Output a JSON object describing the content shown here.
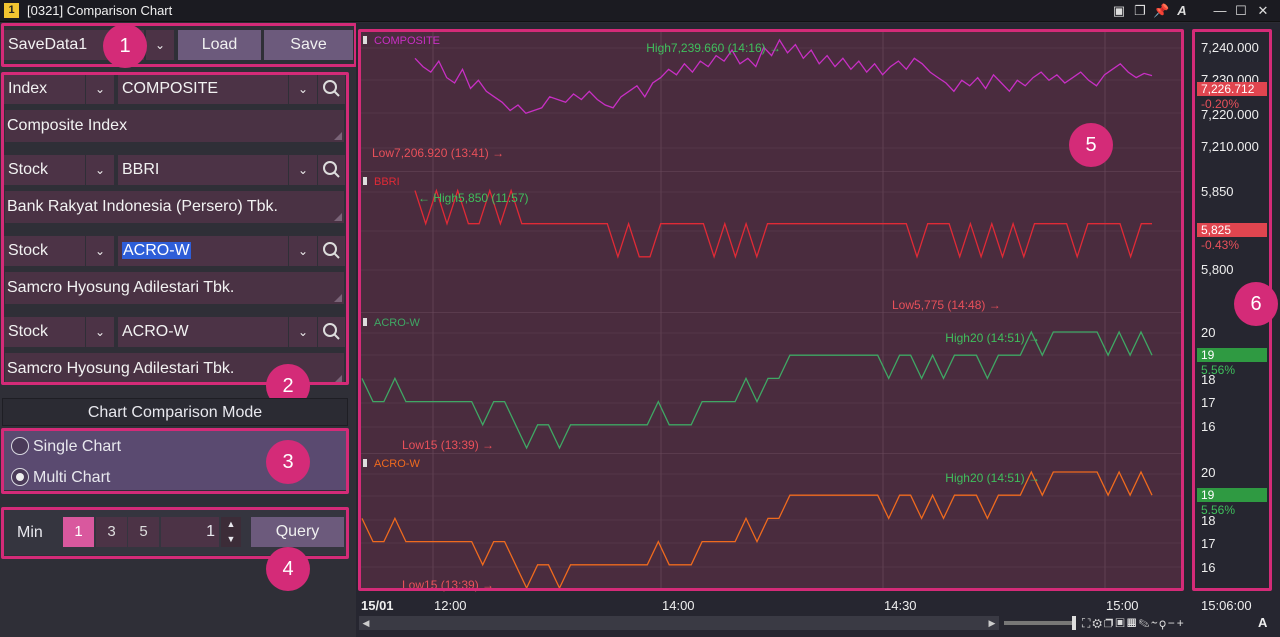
{
  "window": {
    "icon_label": "1",
    "title": "[0321] Comparison Chart"
  },
  "toolbar": {
    "preset_value": "SaveData1",
    "load_label": "Load",
    "save_label": "Save"
  },
  "selectors": [
    {
      "type": "Index",
      "code": "COMPOSITE",
      "name": "Composite Index"
    },
    {
      "type": "Stock",
      "code": "BBRI",
      "name": "Bank Rakyat Indonesia (Persero) Tbk."
    },
    {
      "type": "Stock",
      "code": "ACRO-W",
      "name": "Samcro Hyosung Adilestari Tbk."
    },
    {
      "type": "Stock",
      "code": "ACRO-W",
      "name": "Samcro Hyosung Adilestari Tbk."
    }
  ],
  "mode": {
    "title": "Chart Comparison Mode",
    "single_label": "Single Chart",
    "multi_label": "Multi Chart",
    "selected": "Multi Chart"
  },
  "query": {
    "min_label": "Min",
    "intervals": [
      "1",
      "3",
      "5"
    ],
    "active_interval": "1",
    "count_value": "1",
    "query_label": "Query"
  },
  "badges": [
    "1",
    "2",
    "3",
    "4",
    "5",
    "6"
  ],
  "colors": {
    "composite": "#c82fc4",
    "bbri": "#e02a36",
    "acro_green": "#3fa764",
    "acro_orange": "#ef6a1e",
    "highlight": "#d42b78",
    "up_box": "#2f9a42",
    "down_box": "#e0454f"
  },
  "panes": [
    {
      "label": "COMPOSITE",
      "high": "High7,239.660 (14:16)",
      "low": "Low7,206.920 (13:41)",
      "y_ticks": [
        "7,240.000",
        "7,230.000",
        "7,220.000",
        "7,210.000"
      ],
      "last": "7,226.712",
      "change": "-0.20%",
      "values": [
        7233,
        7230,
        7228,
        7232,
        7226,
        7224,
        7229,
        7222,
        7225,
        7221,
        7219,
        7217,
        7214,
        7216,
        7213,
        7214,
        7215,
        7219,
        7218,
        7217,
        7220,
        7218,
        7221,
        7218,
        7216,
        7215,
        7219,
        7221,
        7223,
        7219,
        7224,
        7226,
        7229,
        7227,
        7231,
        7228,
        7232,
        7230,
        7234,
        7232,
        7236,
        7231,
        7233,
        7230,
        7237,
        7234,
        7239.66,
        7235,
        7238,
        7233,
        7236,
        7231,
        7234,
        7230,
        7233,
        7229,
        7232,
        7228,
        7231,
        7227,
        7230,
        7232,
        7229,
        7233,
        7231,
        7228,
        7226,
        7224,
        7221,
        7225,
        7223,
        7226,
        7222,
        7227,
        7224,
        7221,
        7225,
        7223,
        7226,
        7228,
        7225,
        7227,
        7224,
        7226,
        7228,
        7225,
        7223,
        7227,
        7229,
        7231,
        7228,
        7226,
        7227.5,
        7226.7
      ]
    },
    {
      "label": "BBRI",
      "high": "High5,850 (11:57)",
      "low": "Low5,775 (14:48)",
      "y_ticks": [
        "5,850",
        "5,825",
        "5,800"
      ],
      "last": "5,825",
      "change": "-0.43%",
      "values": [
        5850,
        5825,
        5850,
        5825,
        5850,
        5825,
        5825,
        5850,
        5825,
        5850,
        5825,
        5825,
        5825,
        5825,
        5825,
        5825,
        5825,
        5825,
        5825,
        5800,
        5825,
        5800,
        5800,
        5825,
        5825,
        5825,
        5825,
        5825,
        5800,
        5825,
        5800,
        5825,
        5800,
        5825,
        5825,
        5825,
        5825,
        5825,
        5825,
        5825,
        5825,
        5825,
        5825,
        5825,
        5825,
        5825,
        5825,
        5800,
        5825,
        5825,
        5825,
        5800,
        5825,
        5800,
        5825,
        5800,
        5825,
        5800,
        5825,
        5825,
        5825,
        5825,
        5800,
        5825,
        5825,
        5825,
        5825,
        5800,
        5825,
        5825
      ]
    },
    {
      "label": "ACRO-W",
      "high": "High20 (14:51)",
      "low": "Low15 (13:39)",
      "y_ticks": [
        "20",
        "18",
        "17",
        "16"
      ],
      "last": "19",
      "change": "5.56%",
      "values": [
        18,
        17,
        17,
        18,
        17,
        17,
        17,
        17,
        17,
        17,
        17,
        16,
        17,
        17,
        16,
        15,
        16,
        16,
        15,
        16,
        16,
        16,
        16,
        16,
        16,
        16,
        16,
        17,
        16,
        16,
        16,
        17,
        17,
        17,
        17,
        18,
        17,
        18,
        18,
        19,
        19,
        19,
        19,
        19,
        19,
        19,
        19,
        19,
        18,
        19,
        19,
        18,
        19,
        18,
        19,
        19,
        19,
        18,
        19,
        19,
        19,
        20,
        19,
        20,
        20,
        20,
        20,
        20,
        19,
        20,
        19,
        20,
        19
      ]
    },
    {
      "label": "ACRO-W",
      "high": "High20 (14:51)",
      "low": "Low15 (13:39)",
      "y_ticks": [
        "20",
        "18",
        "17",
        "16"
      ],
      "last": "19",
      "change": "5.56%",
      "values": [
        18,
        17,
        17,
        18,
        17,
        17,
        17,
        17,
        17,
        17,
        17,
        16,
        17,
        17,
        16,
        15,
        16,
        16,
        15,
        16,
        16,
        16,
        16,
        16,
        16,
        16,
        16,
        17,
        16,
        16,
        16,
        17,
        17,
        17,
        17,
        18,
        17,
        18,
        18,
        19,
        19,
        19,
        19,
        19,
        19,
        19,
        19,
        19,
        18,
        19,
        19,
        18,
        19,
        18,
        19,
        19,
        19,
        18,
        19,
        19,
        19,
        20,
        19,
        20,
        20,
        20,
        20,
        20,
        19,
        20,
        19,
        20,
        19
      ]
    }
  ],
  "x_axis": {
    "date_label": "15/01",
    "ticks": [
      "12:00",
      "14:00",
      "14:30",
      "15:00"
    ],
    "cursor_time": "15:06:00"
  },
  "status": {
    "font_button": "A"
  }
}
